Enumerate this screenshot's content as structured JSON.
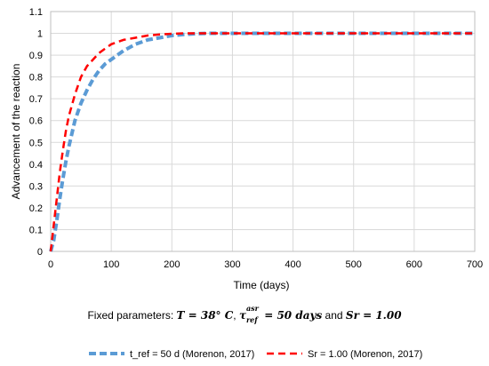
{
  "chart_data": {
    "type": "line",
    "xlabel": "Time (days)",
    "ylabel": "Advancement of the reaction",
    "xlim": [
      0,
      700
    ],
    "ylim": [
      0,
      1.1
    ],
    "x_ticks": [
      "0",
      "100",
      "200",
      "300",
      "400",
      "500",
      "600",
      "700"
    ],
    "y_ticks": [
      "0",
      "0.1",
      "0.2",
      "0.3",
      "0.4",
      "0.5",
      "0.6",
      "0.7",
      "0.8",
      "0.9",
      "1",
      "1.1"
    ],
    "grid": true,
    "legend_position": "bottom",
    "series": [
      {
        "name": "t_ref = 50 d (Morenon, 2017)",
        "color": "#5b9bd5",
        "style": "dashed",
        "x": [
          0,
          5,
          10,
          15,
          20,
          25,
          30,
          40,
          50,
          60,
          70,
          80,
          90,
          100,
          120,
          140,
          160,
          180,
          200,
          220,
          240,
          260,
          280,
          300,
          350,
          400,
          500,
          600,
          700
        ],
        "y": [
          0,
          0.05,
          0.14,
          0.24,
          0.33,
          0.41,
          0.48,
          0.6,
          0.68,
          0.74,
          0.79,
          0.83,
          0.86,
          0.88,
          0.92,
          0.95,
          0.97,
          0.98,
          0.99,
          0.995,
          0.998,
          1.0,
          1.0,
          1.0,
          1.0,
          1.0,
          1.0,
          1.0,
          1.0
        ]
      },
      {
        "name": "Sr = 1.00 (Morenon, 2017)",
        "color": "#ff0000",
        "style": "dashed",
        "x": [
          0,
          5,
          10,
          15,
          20,
          25,
          30,
          40,
          50,
          60,
          70,
          80,
          90,
          100,
          120,
          140,
          160,
          180,
          200,
          220,
          240,
          260,
          280,
          300,
          350,
          400,
          500,
          600,
          700
        ],
        "y": [
          0,
          0.12,
          0.24,
          0.36,
          0.46,
          0.55,
          0.62,
          0.72,
          0.8,
          0.85,
          0.88,
          0.91,
          0.93,
          0.95,
          0.97,
          0.98,
          0.99,
          0.995,
          0.998,
          1.0,
          1.0,
          1.0,
          1.0,
          1.0,
          1.0,
          1.0,
          1.0,
          1.0,
          1.0
        ]
      }
    ]
  },
  "fixed_params": {
    "prefix": "Fixed parameters: ",
    "T": "T = 38° C",
    "sep1": ", ",
    "tau_base": "τ",
    "tau_sup": "asr",
    "tau_sub": "ref",
    "tau_value": " = 50 days",
    "and": " and ",
    "Sr": "Sr = 1.00"
  },
  "colors": {
    "grid": "#d9d9d9",
    "axis": "#bfbfbf"
  }
}
